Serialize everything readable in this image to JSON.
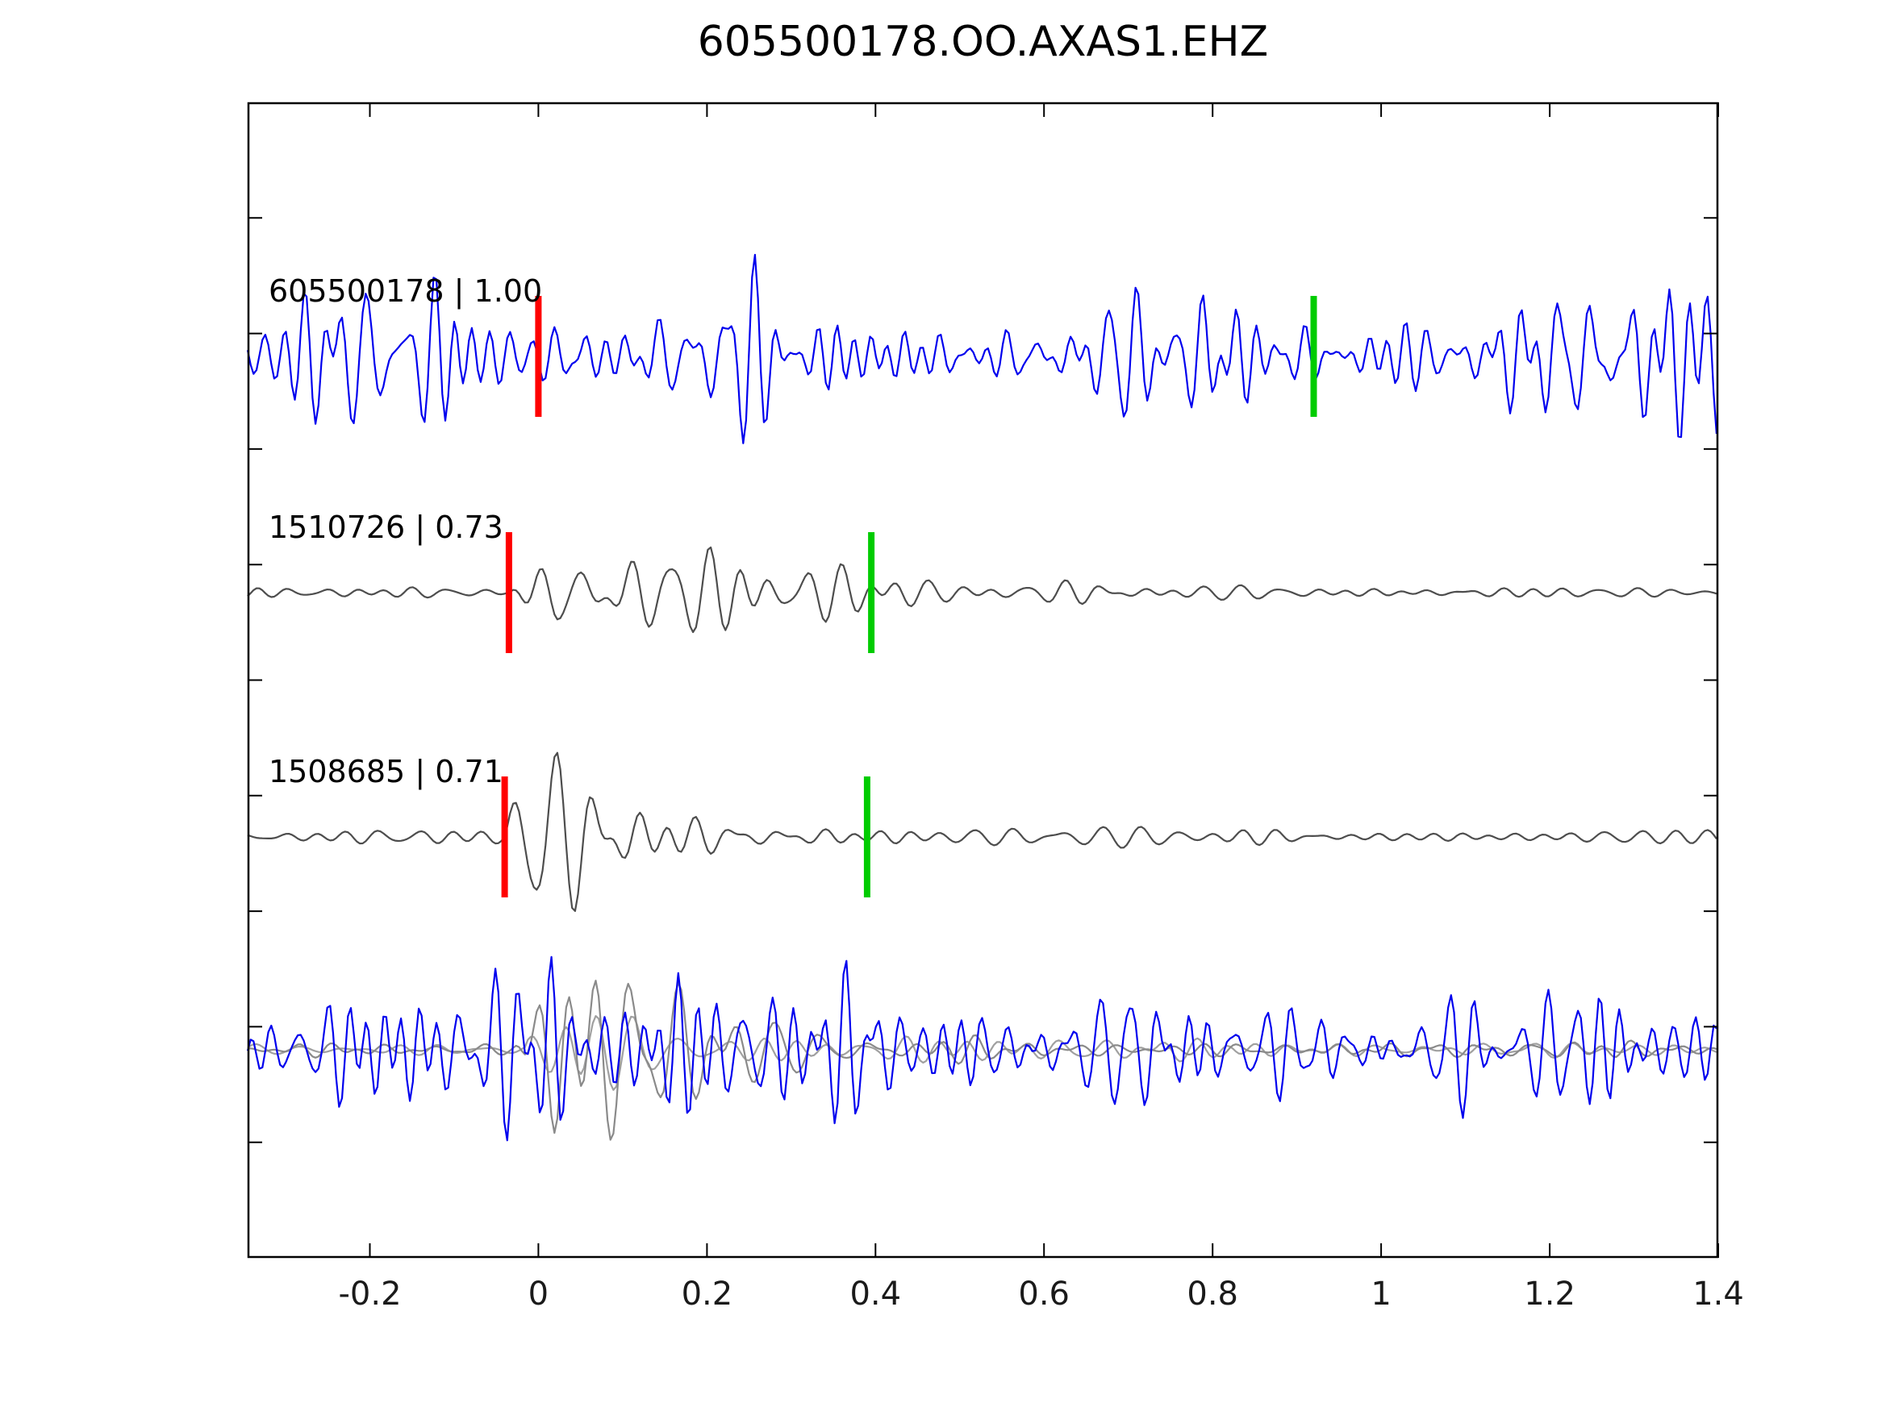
{
  "figure": {
    "title": "605500178.OO.AXAS1.EHZ"
  },
  "chart_data": {
    "type": "line",
    "title": "605500178.OO.AXAS1.EHZ",
    "subtitle": "",
    "xlabel": "",
    "ylabel": "",
    "xlim": [
      -0.345,
      1.4
    ],
    "x_ticks": [
      -0.2,
      0,
      0.2,
      0.4,
      0.6,
      0.8,
      1,
      1.2,
      1.4
    ],
    "x_tick_labels": [
      "-0.2",
      "0",
      "0.2",
      "0.4",
      "0.6",
      "0.8",
      "1",
      "1.2",
      "1.4"
    ],
    "grid": false,
    "legend_position": "none",
    "colors": {
      "detection_trace": "#0000ee",
      "template_trace": "#4d4d4d",
      "overlay_gray_1": "#8a8a8a",
      "overlay_gray_2": "#a0a0a0",
      "pick_marker_red": "#ff0000",
      "pick_marker_green": "#00cc00",
      "axis": "#000000",
      "tick_label": "#1a1a1a"
    },
    "traces": [
      {
        "id": "detection-605500178",
        "label": "605500178 | 1.00",
        "name": "605500178",
        "correlation": 1.0,
        "role": "detection",
        "color": "#0000ee",
        "row": 0,
        "picks": {
          "red": 0.0,
          "green": 0.92
        },
        "synth": {
          "kind": "noise",
          "seed": 101,
          "f1": 22,
          "f2": 52,
          "amp": 27,
          "burst": {
            "onset": -0.06,
            "attack": 0.04,
            "decay": 0.08,
            "gain": 0.5
          }
        }
      },
      {
        "id": "template-1510726",
        "label": "1510726 | 0.73",
        "name": "1510726",
        "correlation": 0.73,
        "role": "template",
        "color": "#4d4d4d",
        "row": 1,
        "picks": {
          "red": -0.035,
          "green": 0.395
        },
        "synth": {
          "kind": "burst",
          "seed": 202,
          "f1": 17,
          "f2": 34,
          "amp": 46,
          "onset": -0.03,
          "attack": 0.05,
          "decay": 0.13,
          "floor": 0.08
        }
      },
      {
        "id": "template-1508685",
        "label": "1508685 | 0.71",
        "name": "1508685",
        "correlation": 0.71,
        "role": "template",
        "color": "#4d4d4d",
        "row": 2,
        "picks": {
          "red": -0.04,
          "green": 0.39
        },
        "synth": {
          "kind": "burst",
          "seed": 303,
          "f1": 16,
          "f2": 32,
          "amp": 42,
          "onset": -0.04,
          "attack": 0.05,
          "decay": 0.11,
          "floor": 0.08
        }
      },
      {
        "id": "overlay-comparison",
        "label": "",
        "name": "overlay",
        "role": "overlay",
        "row": 3,
        "picks": null,
        "components": [
          {
            "id": "overlay-template-2",
            "color": "#a0a0a0",
            "synth": {
              "kind": "burst",
              "seed": 606,
              "f1": 15,
              "f2": 30,
              "amp": 34,
              "onset": -0.015,
              "attack": 0.06,
              "decay": 0.13,
              "floor": 0.1
            }
          },
          {
            "id": "overlay-template-1",
            "color": "#8a8a8a",
            "synth": {
              "kind": "burst",
              "seed": 505,
              "f1": 16,
              "f2": 33,
              "amp": 40,
              "onset": -0.03,
              "attack": 0.05,
              "decay": 0.17,
              "floor": 0.1
            }
          },
          {
            "id": "overlay-detection",
            "color": "#0000ee",
            "synth": {
              "kind": "noise",
              "seed": 404,
              "f1": 22,
              "f2": 52,
              "amp": 28,
              "burst": {
                "onset": -0.03,
                "attack": 0.05,
                "decay": 0.3,
                "gain": 0.8
              }
            }
          }
        ]
      }
    ]
  }
}
